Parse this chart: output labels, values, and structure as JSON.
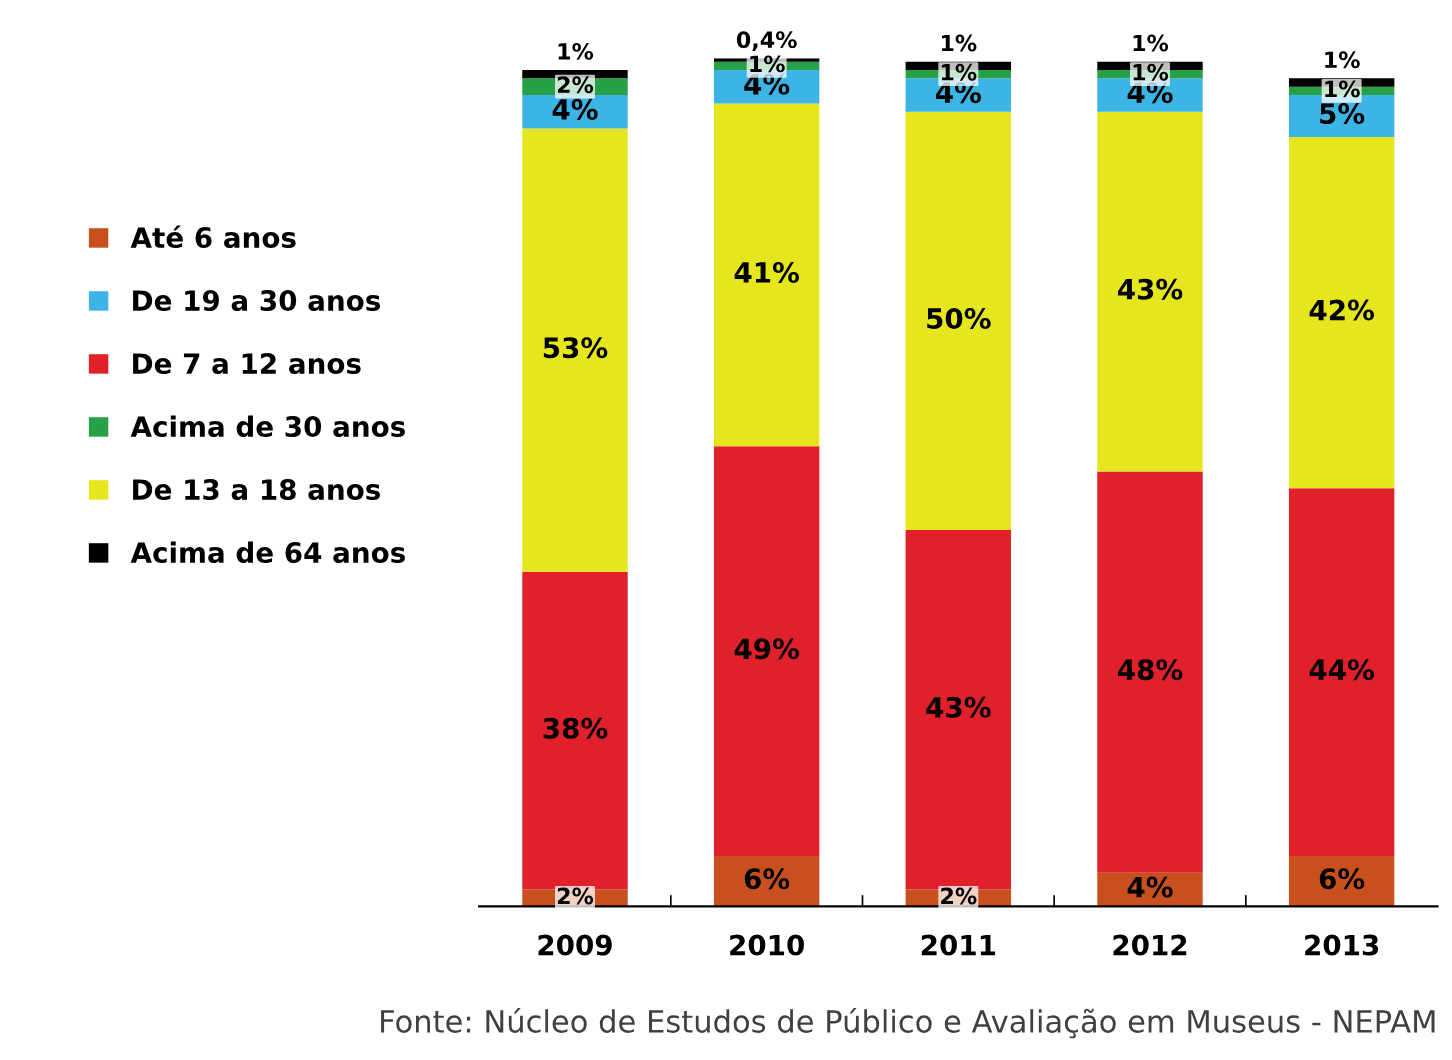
{
  "chart_data": {
    "type": "bar",
    "stacked": true,
    "categories": [
      "2009",
      "2010",
      "2011",
      "2012",
      "2013"
    ],
    "series": [
      {
        "name": "Até 6 anos",
        "color": "#c8501e",
        "values": [
          2,
          6,
          2,
          4,
          6
        ],
        "value_labels": [
          "2%",
          "6%",
          "2%",
          "4%",
          "6%"
        ]
      },
      {
        "name": "De 7 a 12 anos",
        "color": "#e0202a",
        "values": [
          38,
          49,
          43,
          48,
          44
        ],
        "value_labels": [
          "38%",
          "49%",
          "43%",
          "48%",
          "44%"
        ]
      },
      {
        "name": "De 13 a 18 anos",
        "color": "#e6e61e",
        "values": [
          53,
          41,
          50,
          43,
          42
        ],
        "value_labels": [
          "53%",
          "41%",
          "50%",
          "43%",
          "42%"
        ]
      },
      {
        "name": "De 19 a 30 anos",
        "color": "#3cb4e6",
        "values": [
          4,
          4,
          4,
          4,
          5
        ],
        "value_labels": [
          "4%",
          "4%",
          "4%",
          "4%",
          "5%"
        ]
      },
      {
        "name": "Acima de 30 anos",
        "color": "#28a046",
        "values": [
          2,
          1,
          1,
          1,
          1
        ],
        "value_labels": [
          "2%",
          "1%",
          "1%",
          "1%",
          "1%"
        ]
      },
      {
        "name": "Acima de 64 anos",
        "color": "#000000",
        "values": [
          1,
          0.4,
          1,
          1,
          1
        ],
        "value_labels": [
          "1%",
          "0,4%",
          "1%",
          "1%",
          "1%"
        ]
      }
    ],
    "legend": "left",
    "tick_labels": "x",
    "grid": false,
    "annotations": [
      "Fonte: Núcleo de Estudos de Público e Avaliação em Museus - NEPAM"
    ]
  }
}
